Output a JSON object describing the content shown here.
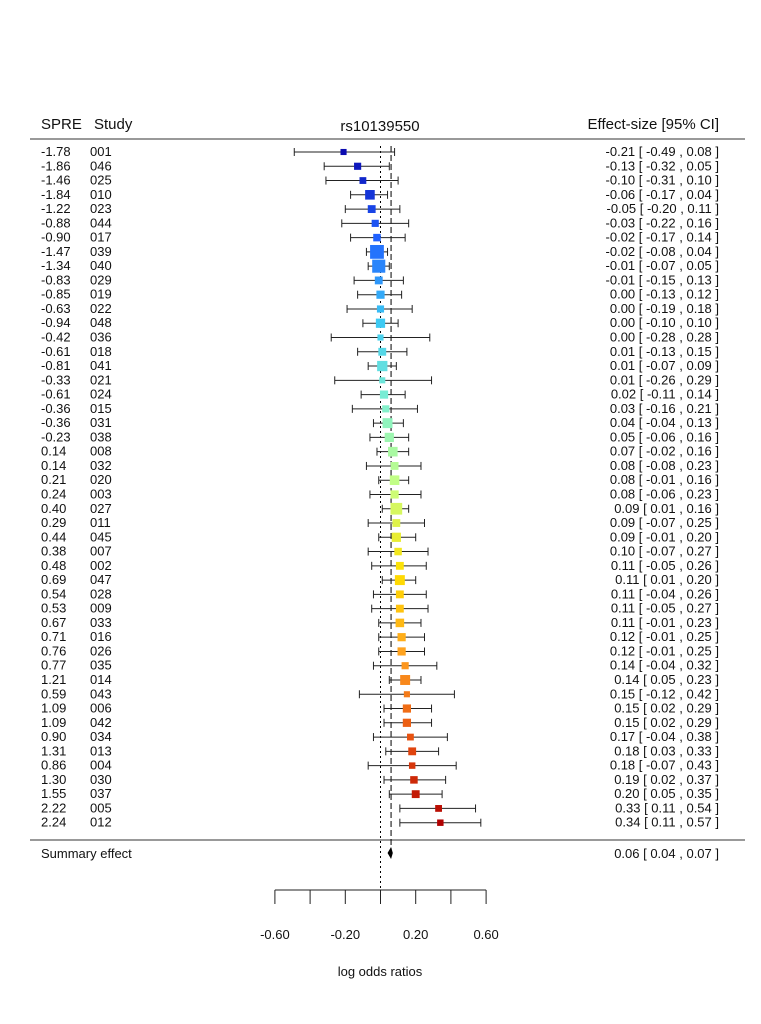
{
  "chart_data": {
    "type": "forest",
    "title": "rs10139550",
    "headers": {
      "spre": "SPRE",
      "study": "Study",
      "effect": "Effect-size [95% CI]"
    },
    "xlabel": "log odds ratios",
    "xlim": [
      -0.6,
      0.6
    ],
    "xticks": [
      "-0.60",
      "-0.20",
      "0.20",
      "0.60"
    ],
    "reference_lines": [
      0,
      0.06
    ],
    "color_scale": [
      "#0a0ab0",
      "#1f5fff",
      "#3bc8f5",
      "#7ff0d0",
      "#c8ff80",
      "#ffe000",
      "#ffa020",
      "#e85010",
      "#b00000"
    ],
    "studies": [
      {
        "spre": "-1.78",
        "study": "001",
        "es": -0.21,
        "lo": -0.49,
        "hi": 0.08,
        "ci_text": "-0.21 [ -0.49 , 0.08 ]",
        "weight": 0.3
      },
      {
        "spre": "-1.86",
        "study": "046",
        "es": -0.13,
        "lo": -0.32,
        "hi": 0.05,
        "ci_text": "-0.13 [ -0.32 , 0.05 ]",
        "weight": 0.45
      },
      {
        "spre": "-1.46",
        "study": "025",
        "es": -0.1,
        "lo": -0.31,
        "hi": 0.1,
        "ci_text": "-0.10 [ -0.31 , 0.10 ]",
        "weight": 0.4
      },
      {
        "spre": "-1.84",
        "study": "010",
        "es": -0.06,
        "lo": -0.17,
        "hi": 0.04,
        "ci_text": "-0.06 [ -0.17 , 0.04 ]",
        "weight": 0.8
      },
      {
        "spre": "-1.22",
        "study": "023",
        "es": -0.05,
        "lo": -0.2,
        "hi": 0.11,
        "ci_text": "-0.05 [ -0.20 , 0.11 ]",
        "weight": 0.55
      },
      {
        "spre": "-0.88",
        "study": "044",
        "es": -0.03,
        "lo": -0.22,
        "hi": 0.16,
        "ci_text": "-0.03 [ -0.22 , 0.16 ]",
        "weight": 0.45
      },
      {
        "spre": "-0.90",
        "study": "017",
        "es": -0.02,
        "lo": -0.17,
        "hi": 0.14,
        "ci_text": "-0.02 [ -0.17 , 0.14 ]",
        "weight": 0.5
      },
      {
        "spre": "-1.47",
        "study": "039",
        "es": -0.02,
        "lo": -0.08,
        "hi": 0.04,
        "ci_text": "-0.02 [ -0.08 , 0.04 ]",
        "weight": 1.4
      },
      {
        "spre": "-1.34",
        "study": "040",
        "es": -0.01,
        "lo": -0.07,
        "hi": 0.05,
        "ci_text": "-0.01 [ -0.07 , 0.05 ]",
        "weight": 1.3
      },
      {
        "spre": "-0.83",
        "study": "029",
        "es": -0.01,
        "lo": -0.15,
        "hi": 0.13,
        "ci_text": "-0.01 [ -0.15 , 0.13 ]",
        "weight": 0.55
      },
      {
        "spre": "-0.85",
        "study": "019",
        "es": 0.0,
        "lo": -0.13,
        "hi": 0.12,
        "ci_text": "0.00 [ -0.13 , 0.12 ]",
        "weight": 0.6
      },
      {
        "spre": "-0.63",
        "study": "022",
        "es": 0.0,
        "lo": -0.19,
        "hi": 0.18,
        "ci_text": "0.00 [ -0.19 , 0.18 ]",
        "weight": 0.45
      },
      {
        "spre": "-0.94",
        "study": "048",
        "es": 0.0,
        "lo": -0.1,
        "hi": 0.1,
        "ci_text": "0.00 [ -0.10 , 0.10 ]",
        "weight": 0.75
      },
      {
        "spre": "-0.42",
        "study": "036",
        "es": 0.0,
        "lo": -0.28,
        "hi": 0.28,
        "ci_text": "0.00 [ -0.28 , 0.28 ]",
        "weight": 0.3
      },
      {
        "spre": "-0.61",
        "study": "018",
        "es": 0.01,
        "lo": -0.13,
        "hi": 0.15,
        "ci_text": "0.01 [ -0.13 , 0.15 ]",
        "weight": 0.55
      },
      {
        "spre": "-0.81",
        "study": "041",
        "es": 0.01,
        "lo": -0.07,
        "hi": 0.09,
        "ci_text": "0.01 [ -0.07 , 0.09 ]",
        "weight": 0.9
      },
      {
        "spre": "-0.33",
        "study": "021",
        "es": 0.01,
        "lo": -0.26,
        "hi": 0.29,
        "ci_text": "0.01 [ -0.26 , 0.29 ]",
        "weight": 0.3
      },
      {
        "spre": "-0.61",
        "study": "024",
        "es": 0.02,
        "lo": -0.11,
        "hi": 0.14,
        "ci_text": "0.02 [ -0.11 , 0.14 ]",
        "weight": 0.6
      },
      {
        "spre": "-0.36",
        "study": "015",
        "es": 0.03,
        "lo": -0.16,
        "hi": 0.21,
        "ci_text": "0.03 [ -0.16 , 0.21 ]",
        "weight": 0.45
      },
      {
        "spre": "-0.36",
        "study": "031",
        "es": 0.04,
        "lo": -0.04,
        "hi": 0.13,
        "ci_text": "0.04 [ -0.04 , 0.13 ]",
        "weight": 0.85
      },
      {
        "spre": "-0.23",
        "study": "038",
        "es": 0.05,
        "lo": -0.06,
        "hi": 0.16,
        "ci_text": "0.05 [ -0.06 , 0.16 ]",
        "weight": 0.75
      },
      {
        "spre": "0.14",
        "study": "008",
        "es": 0.07,
        "lo": -0.02,
        "hi": 0.16,
        "ci_text": "0.07 [ -0.02 , 0.16 ]",
        "weight": 0.8
      },
      {
        "spre": "0.14",
        "study": "032",
        "es": 0.08,
        "lo": -0.08,
        "hi": 0.23,
        "ci_text": "0.08 [ -0.08 , 0.23 ]",
        "weight": 0.55
      },
      {
        "spre": "0.21",
        "study": "020",
        "es": 0.08,
        "lo": -0.01,
        "hi": 0.16,
        "ci_text": "0.08 [ -0.01 , 0.16 ]",
        "weight": 0.8
      },
      {
        "spre": "0.24",
        "study": "003",
        "es": 0.08,
        "lo": -0.06,
        "hi": 0.23,
        "ci_text": "0.08 [ -0.06 , 0.23 ]",
        "weight": 0.6
      },
      {
        "spre": "0.40",
        "study": "027",
        "es": 0.09,
        "lo": 0.01,
        "hi": 0.16,
        "ci_text": "0.09 [ 0.01 , 0.16 ]",
        "weight": 1.1
      },
      {
        "spre": "0.29",
        "study": "011",
        "es": 0.09,
        "lo": -0.07,
        "hi": 0.25,
        "ci_text": "0.09 [ -0.07 , 0.25 ]",
        "weight": 0.55
      },
      {
        "spre": "0.44",
        "study": "045",
        "es": 0.09,
        "lo": -0.01,
        "hi": 0.2,
        "ci_text": "0.09 [ -0.01 , 0.20 ]",
        "weight": 0.75
      },
      {
        "spre": "0.38",
        "study": "007",
        "es": 0.1,
        "lo": -0.07,
        "hi": 0.27,
        "ci_text": "0.10 [ -0.07 , 0.27 ]",
        "weight": 0.5
      },
      {
        "spre": "0.48",
        "study": "002",
        "es": 0.11,
        "lo": -0.05,
        "hi": 0.26,
        "ci_text": "0.11 [ -0.05 , 0.26 ]",
        "weight": 0.55
      },
      {
        "spre": "0.69",
        "study": "047",
        "es": 0.11,
        "lo": 0.01,
        "hi": 0.2,
        "ci_text": "0.11 [ 0.01 , 0.20 ]",
        "weight": 0.85
      },
      {
        "spre": "0.54",
        "study": "028",
        "es": 0.11,
        "lo": -0.04,
        "hi": 0.26,
        "ci_text": "0.11 [ -0.04 , 0.26 ]",
        "weight": 0.55
      },
      {
        "spre": "0.53",
        "study": "009",
        "es": 0.11,
        "lo": -0.05,
        "hi": 0.27,
        "ci_text": "0.11 [ -0.05 , 0.27 ]",
        "weight": 0.55
      },
      {
        "spre": "0.67",
        "study": "033",
        "es": 0.11,
        "lo": -0.01,
        "hi": 0.23,
        "ci_text": "0.11 [ -0.01 , 0.23 ]",
        "weight": 0.65
      },
      {
        "spre": "0.71",
        "study": "016",
        "es": 0.12,
        "lo": -0.01,
        "hi": 0.25,
        "ci_text": "0.12 [ -0.01 , 0.25 ]",
        "weight": 0.6
      },
      {
        "spre": "0.76",
        "study": "026",
        "es": 0.12,
        "lo": -0.01,
        "hi": 0.25,
        "ci_text": "0.12 [ -0.01 , 0.25 ]",
        "weight": 0.6
      },
      {
        "spre": "0.77",
        "study": "035",
        "es": 0.14,
        "lo": -0.04,
        "hi": 0.32,
        "ci_text": "0.14 [ -0.04 , 0.32 ]",
        "weight": 0.45
      },
      {
        "spre": "1.21",
        "study": "014",
        "es": 0.14,
        "lo": 0.05,
        "hi": 0.23,
        "ci_text": "0.14 [ 0.05 , 0.23 ]",
        "weight": 0.85
      },
      {
        "spre": "0.59",
        "study": "043",
        "es": 0.15,
        "lo": -0.12,
        "hi": 0.42,
        "ci_text": "0.15 [ -0.12 , 0.42 ]",
        "weight": 0.3
      },
      {
        "spre": "1.09",
        "study": "006",
        "es": 0.15,
        "lo": 0.02,
        "hi": 0.29,
        "ci_text": "0.15 [ 0.02 , 0.29 ]",
        "weight": 0.6
      },
      {
        "spre": "1.09",
        "study": "042",
        "es": 0.15,
        "lo": 0.02,
        "hi": 0.29,
        "ci_text": "0.15 [ 0.02 , 0.29 ]",
        "weight": 0.6
      },
      {
        "spre": "0.90",
        "study": "034",
        "es": 0.17,
        "lo": -0.04,
        "hi": 0.38,
        "ci_text": "0.17 [ -0.04 , 0.38 ]",
        "weight": 0.4
      },
      {
        "spre": "1.31",
        "study": "013",
        "es": 0.18,
        "lo": 0.03,
        "hi": 0.33,
        "ci_text": "0.18 [ 0.03 , 0.33 ]",
        "weight": 0.55
      },
      {
        "spre": "0.86",
        "study": "004",
        "es": 0.18,
        "lo": -0.07,
        "hi": 0.43,
        "ci_text": "0.18 [ -0.07 , 0.43 ]",
        "weight": 0.35
      },
      {
        "spre": "1.30",
        "study": "030",
        "es": 0.19,
        "lo": 0.02,
        "hi": 0.37,
        "ci_text": "0.19 [ 0.02 , 0.37 ]",
        "weight": 0.5
      },
      {
        "spre": "1.55",
        "study": "037",
        "es": 0.2,
        "lo": 0.05,
        "hi": 0.35,
        "ci_text": "0.20 [ 0.05 , 0.35 ]",
        "weight": 0.55
      },
      {
        "spre": "2.22",
        "study": "005",
        "es": 0.33,
        "lo": 0.11,
        "hi": 0.54,
        "ci_text": "0.33 [ 0.11 , 0.54 ]",
        "weight": 0.4
      },
      {
        "spre": "2.24",
        "study": "012",
        "es": 0.34,
        "lo": 0.11,
        "hi": 0.57,
        "ci_text": "0.34 [ 0.11 , 0.57 ]",
        "weight": 0.35
      }
    ],
    "summary": {
      "label": "Summary effect",
      "es": 0.06,
      "lo": 0.04,
      "hi": 0.07,
      "ci_text": "0.06 [ 0.04 , 0.07 ]"
    }
  }
}
